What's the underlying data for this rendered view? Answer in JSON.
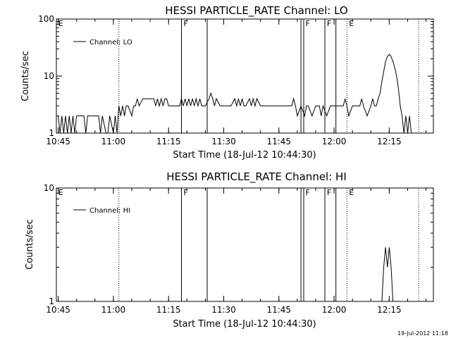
{
  "footer_timestamp": "19-Jul-2012 11:18",
  "colors": {
    "line": "#000000",
    "background": "#ffffff"
  },
  "chart_data": [
    {
      "type": "line",
      "title": "HESSI PARTICLE_RATE Channel: LO",
      "xlabel": "Start Time (18-Jul-12 10:44:30)",
      "ylabel": "Counts/sec",
      "yscale": "log",
      "ylim": [
        1,
        100
      ],
      "ytick_labels": [
        "1",
        "10",
        "100"
      ],
      "xlim": [
        "10:44:30",
        "12:27:00"
      ],
      "xtick_labels": [
        "10:45",
        "11:00",
        "11:15",
        "11:30",
        "11:45",
        "12:00",
        "12:15"
      ],
      "legend": "Channel: LO",
      "legend_position": "upper-left",
      "flag_labels": [
        "E",
        "F",
        "F",
        "F",
        "E"
      ],
      "solid_vlines": [
        "11:18:30",
        "11:25:30",
        "11:51:00",
        "11:51:45",
        "11:57:30",
        "12:00:30"
      ],
      "dotted_vlines": [
        "11:01:30",
        "12:03:30",
        "12:23:00"
      ],
      "series": [
        {
          "x": [
            "10:45:00",
            "10:45:30",
            "10:46:00",
            "10:46:30",
            "10:47:00",
            "10:47:30",
            "10:48:00",
            "10:48:30",
            "10:49:00",
            "10:49:30",
            "10:50:00",
            "10:52:00",
            "10:52:30",
            "10:53:00",
            "10:56:00",
            "10:56:30",
            "10:57:00",
            "10:58:00",
            "10:58:30",
            "10:59:00",
            "11:00:00",
            "11:00:30",
            "11:01:00",
            "11:01:30",
            "11:02:00",
            "11:02:30",
            "11:03:00",
            "11:03:30",
            "11:04:00",
            "11:05:00",
            "11:05:30",
            "11:06:00",
            "11:06:30",
            "11:07:00",
            "11:08:00",
            "11:09:00",
            "11:10:00",
            "11:11:00",
            "11:11:30",
            "11:12:00",
            "11:12:30",
            "11:13:00",
            "11:13:30",
            "11:14:00",
            "11:14:30",
            "11:15:00",
            "11:16:00",
            "11:17:00",
            "11:18:00",
            "11:18:30",
            "11:19:00",
            "11:19:30",
            "11:20:00",
            "11:20:30",
            "11:21:00",
            "11:21:30",
            "11:22:00",
            "11:22:30",
            "11:23:00",
            "11:23:30",
            "11:24:00",
            "11:25:00",
            "11:26:00",
            "11:26:30",
            "11:27:00",
            "11:27:30",
            "11:28:00",
            "11:29:00",
            "11:30:00",
            "11:31:00",
            "11:32:00",
            "11:33:00",
            "11:33:30",
            "11:34:00",
            "11:34:30",
            "11:35:00",
            "11:35:30",
            "11:36:00",
            "11:37:00",
            "11:37:30",
            "11:38:00",
            "11:38:30",
            "11:39:00",
            "11:40:00",
            "11:41:00",
            "11:42:00",
            "11:43:00",
            "11:44:00",
            "11:45:00",
            "11:46:00",
            "11:47:00",
            "11:48:00",
            "11:48:30",
            "11:49:00",
            "11:49:30",
            "11:50:00",
            "11:51:00",
            "11:52:00",
            "11:52:30",
            "11:53:00",
            "11:54:00",
            "11:55:00",
            "11:55:30",
            "11:56:00",
            "11:56:30",
            "11:57:00",
            "11:58:00",
            "11:59:00",
            "12:00:00",
            "12:01:00",
            "12:02:00",
            "12:02:30",
            "12:03:00",
            "12:03:30",
            "12:04:00",
            "12:05:00",
            "12:06:00",
            "12:06:30",
            "12:07:00",
            "12:07:30",
            "12:08:00",
            "12:09:00",
            "12:10:00",
            "12:10:30",
            "12:11:00",
            "12:11:30",
            "12:12:00",
            "12:12:30",
            "12:13:00",
            "12:13:30",
            "12:14:00",
            "12:14:30",
            "12:15:00",
            "12:15:30",
            "12:16:00",
            "12:16:30",
            "12:17:00",
            "12:17:30",
            "12:18:00",
            "12:18:30",
            "12:19:00",
            "12:19:30",
            "12:20:00",
            "12:20:30",
            "12:21:00",
            "12:21:30",
            "12:22:00",
            "12:22:30"
          ],
          "y": [
            2,
            1,
            2,
            1,
            2,
            1,
            2,
            1,
            2,
            1,
            2,
            2,
            1,
            2,
            2,
            1,
            2,
            1,
            1,
            2,
            1,
            2,
            1,
            3,
            2,
            3,
            2,
            3,
            3,
            2,
            3,
            3,
            4,
            3,
            4,
            4,
            4,
            4,
            3,
            4,
            3,
            4,
            3,
            4,
            4,
            3,
            3,
            3,
            3,
            4,
            3,
            4,
            3,
            4,
            3,
            4,
            3,
            4,
            3,
            4,
            3,
            3,
            4,
            5,
            4,
            3,
            4,
            3,
            3,
            3,
            3,
            4,
            3,
            4,
            3,
            4,
            3,
            3,
            4,
            3,
            4,
            3,
            4,
            3,
            3,
            3,
            3,
            3,
            3,
            3,
            3,
            3,
            3,
            4,
            3,
            2,
            3,
            2,
            3,
            3,
            2,
            3,
            3,
            3,
            2,
            3,
            2,
            3,
            3,
            3,
            3,
            3,
            4,
            3,
            2,
            3,
            3,
            3,
            3,
            4,
            3,
            2,
            3,
            4,
            3,
            3,
            4,
            5,
            8,
            12,
            18,
            22,
            24,
            22,
            18,
            14,
            10,
            6,
            3,
            2,
            1,
            2,
            1,
            2,
            1,
            1,
            1,
            1
          ]
        }
      ]
    },
    {
      "type": "line",
      "title": "HESSI PARTICLE_RATE Channel: HI",
      "xlabel": "Start Time (18-Jul-12 10:44:30)",
      "ylabel": "Counts/sec",
      "yscale": "log",
      "ylim": [
        1,
        10
      ],
      "ytick_labels": [
        "1",
        "10"
      ],
      "xlim": [
        "10:44:30",
        "12:27:00"
      ],
      "xtick_labels": [
        "10:45",
        "11:00",
        "11:15",
        "11:30",
        "11:45",
        "12:00",
        "12:15"
      ],
      "legend": "Channel: HI",
      "legend_position": "upper-left",
      "flag_labels": [
        "E",
        "F",
        "F",
        "F",
        "E"
      ],
      "solid_vlines": [
        "11:18:30",
        "11:25:30",
        "11:51:00",
        "11:51:45",
        "11:57:30",
        "12:00:30"
      ],
      "dotted_vlines": [
        "11:01:30",
        "12:03:30",
        "12:23:00"
      ],
      "series": [
        {
          "x": [
            "12:13:00",
            "12:13:30",
            "12:14:00",
            "12:14:30",
            "12:15:00",
            "12:15:30",
            "12:16:00",
            "12:16:30",
            "12:17:00"
          ],
          "y": [
            1,
            2,
            3,
            2,
            3,
            2,
            1,
            1,
            1
          ]
        }
      ]
    }
  ]
}
